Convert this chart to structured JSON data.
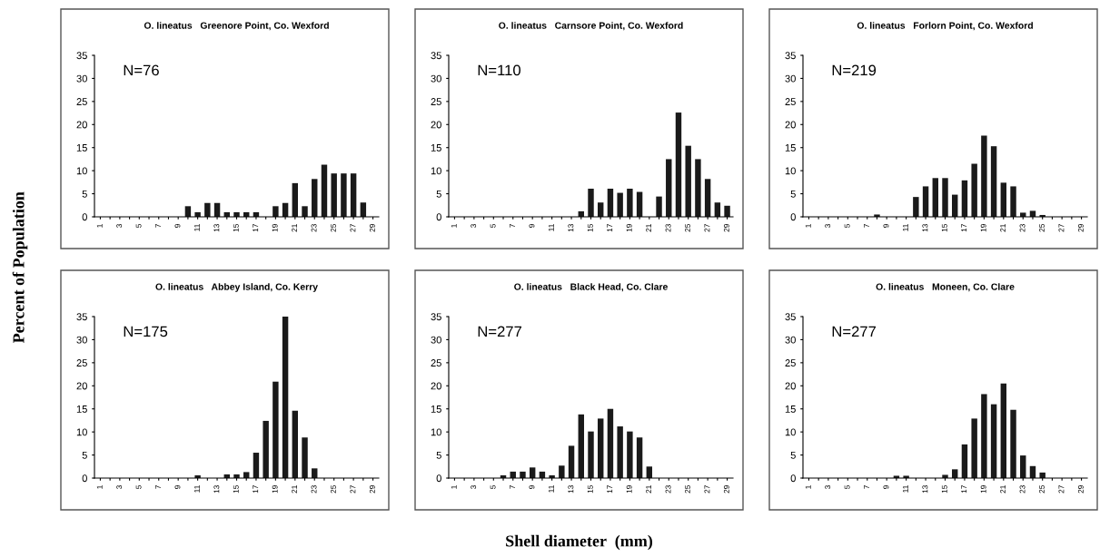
{
  "chart_data": [
    {
      "type": "bar",
      "title": "O. lineatus   Greenore Point, Co. Wexford",
      "ylabel": "Percent of Population",
      "annotations": [
        "N=76"
      ],
      "categories": [
        "1",
        null,
        "3",
        null,
        "5",
        null,
        "7",
        null,
        "9",
        null,
        "11",
        null,
        "13",
        null,
        "15",
        null,
        "17",
        null,
        "19",
        null,
        "21",
        null,
        "23",
        null,
        "25",
        null,
        "27",
        null,
        "29"
      ],
      "color": "#1a1a1a",
      "ylim": [
        0,
        35
      ],
      "yticks": [
        0,
        5,
        10,
        15,
        20,
        25,
        30,
        35
      ],
      "grid": false,
      "values": [
        0,
        0,
        0,
        0,
        0,
        0,
        0,
        0,
        0,
        2.3,
        1,
        3,
        3,
        1,
        1,
        1,
        1,
        0,
        2.3,
        3,
        7.3,
        2.3,
        8.2,
        11.3,
        9.4,
        9.4,
        9.4,
        3.1,
        0
      ]
    },
    {
      "type": "bar",
      "title": "O. lineatus   Carnsore Point, Co. Wexford",
      "annotations": [
        "N=110"
      ],
      "categories": [
        "1",
        null,
        "3",
        null,
        "5",
        null,
        "7",
        null,
        "9",
        null,
        "11",
        null,
        "13",
        null,
        "15",
        null,
        "17",
        null,
        "19",
        null,
        "21",
        null,
        "23",
        null,
        "25",
        null,
        "27",
        null,
        "29"
      ],
      "color": "#1a1a1a",
      "ylim": [
        0,
        35
      ],
      "yticks": [
        0,
        5,
        10,
        15,
        20,
        25,
        30,
        35
      ],
      "grid": false,
      "values": [
        0,
        0,
        0,
        0,
        0,
        0,
        0,
        0,
        0,
        0,
        0,
        0,
        0,
        1.2,
        6.1,
        3.1,
        6.1,
        5.2,
        6.1,
        5.4,
        0,
        4.4,
        12.5,
        22.6,
        15.4,
        12.5,
        8.2,
        3.1,
        2.4
      ]
    },
    {
      "type": "bar",
      "title": "O. lineatus   Forlorn Point, Co. Wexford",
      "annotations": [
        "N=219"
      ],
      "categories": [
        "1",
        null,
        "3",
        null,
        "5",
        null,
        "7",
        null,
        "9",
        null,
        "11",
        null,
        "13",
        null,
        "15",
        null,
        "17",
        null,
        "19",
        null,
        "21",
        null,
        "23",
        null,
        "25",
        null,
        "27",
        null,
        "29"
      ],
      "color": "#1a1a1a",
      "ylim": [
        0,
        35
      ],
      "yticks": [
        0,
        5,
        10,
        15,
        20,
        25,
        30,
        35
      ],
      "grid": false,
      "values": [
        0,
        0,
        0,
        0,
        0,
        0,
        0,
        0.5,
        0,
        0,
        0,
        4.3,
        6.6,
        8.4,
        8.4,
        4.8,
        7.9,
        11.5,
        17.6,
        15.3,
        7.4,
        6.6,
        0.9,
        1.3,
        0.4,
        0,
        0,
        0,
        0
      ]
    },
    {
      "type": "bar",
      "title": "O. lineatus   Abbey Island, Co. Kerry",
      "annotations": [
        "N=175"
      ],
      "categories": [
        "1",
        null,
        "3",
        null,
        "5",
        null,
        "7",
        null,
        "9",
        null,
        "11",
        null,
        "13",
        null,
        "15",
        null,
        "17",
        null,
        "19",
        null,
        "21",
        null,
        "23",
        null,
        "25",
        null,
        "27",
        null,
        "29"
      ],
      "color": "#1a1a1a",
      "ylim": [
        0,
        35
      ],
      "yticks": [
        0,
        5,
        10,
        15,
        20,
        25,
        30,
        35
      ],
      "grid": false,
      "values": [
        0,
        0,
        0,
        0,
        0,
        0,
        0,
        0,
        0,
        0,
        0.6,
        0,
        0,
        0.8,
        0.8,
        1.3,
        5.5,
        12.4,
        20.9,
        35,
        14.6,
        8.8,
        2.1,
        0,
        0,
        0,
        0,
        0,
        0
      ]
    },
    {
      "type": "bar",
      "title": "O. lineatus   Black Head, Co. Clare",
      "xlabel": "Shell diameter  (mm)",
      "annotations": [
        "N=277"
      ],
      "categories": [
        "1",
        null,
        "3",
        null,
        "5",
        null,
        "7",
        null,
        "9",
        null,
        "11",
        null,
        "13",
        null,
        "15",
        null,
        "17",
        null,
        "19",
        null,
        "21",
        null,
        "23",
        null,
        "25",
        null,
        "27",
        null,
        "29"
      ],
      "color": "#1a1a1a",
      "ylim": [
        0,
        35
      ],
      "yticks": [
        0,
        5,
        10,
        15,
        20,
        25,
        30,
        35
      ],
      "grid": false,
      "values": [
        0,
        0,
        0,
        0,
        0,
        0.6,
        1.4,
        1.4,
        2.3,
        1.4,
        0.6,
        2.7,
        7,
        13.8,
        10.1,
        12.9,
        15,
        11.2,
        10.1,
        8.8,
        2.5,
        0,
        0,
        0,
        0,
        0,
        0,
        0,
        0
      ]
    },
    {
      "type": "bar",
      "title": "O. lineatus   Moneen, Co. Clare",
      "annotations": [
        "N=277"
      ],
      "categories": [
        "1",
        null,
        "3",
        null,
        "5",
        null,
        "7",
        null,
        "9",
        null,
        "11",
        null,
        "13",
        null,
        "15",
        null,
        "17",
        null,
        "19",
        null,
        "21",
        null,
        "23",
        null,
        "25",
        null,
        "27",
        null,
        "29"
      ],
      "color": "#1a1a1a",
      "ylim": [
        0,
        35
      ],
      "yticks": [
        0,
        5,
        10,
        15,
        20,
        25,
        30,
        35
      ],
      "grid": false,
      "values": [
        0,
        0,
        0,
        0,
        0,
        0,
        0,
        0,
        0,
        0.5,
        0.5,
        0,
        0,
        0,
        0.7,
        1.9,
        7.3,
        12.9,
        18.2,
        16,
        20.5,
        14.8,
        4.9,
        2.6,
        1.2,
        0,
        0,
        0,
        0
      ]
    }
  ]
}
